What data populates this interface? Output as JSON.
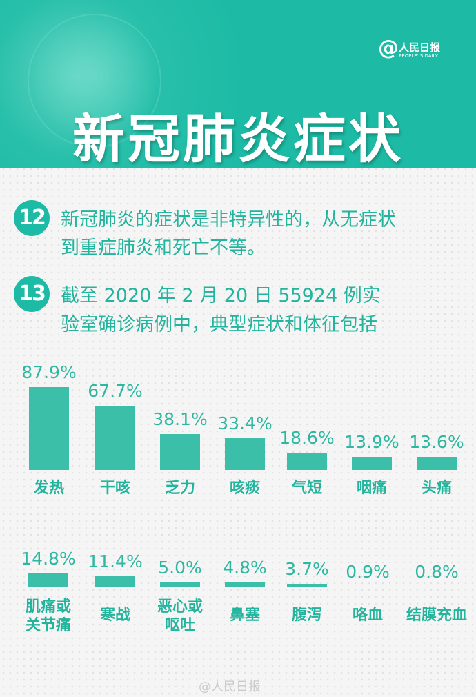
{
  "header": {
    "title": "新冠肺炎症状",
    "logo_cn": "人民日报",
    "logo_en": "PEOPLE' S DAILY",
    "background_color": "#1dbba5"
  },
  "items": [
    {
      "number": "12",
      "lines": [
        "新冠肺炎的症状是非特异性的，从无症状",
        "到重症肺炎和死亡不等。"
      ]
    },
    {
      "number": "13",
      "lines": [
        "截至 2020 年 2 月 20 日 55924 例实",
        "验室确诊病例中，典型症状和体征包括"
      ]
    }
  ],
  "chart_data": [
    {
      "type": "bar",
      "categories": [
        "发热",
        "干咳",
        "乏力",
        "咳痰",
        "气短",
        "咽痛",
        "头痛"
      ],
      "values": [
        87.9,
        67.7,
        38.1,
        33.4,
        18.6,
        13.9,
        13.6
      ],
      "value_labels": [
        "87.9%",
        "67.7%",
        "38.1%",
        "33.4%",
        "18.6%",
        "13.9%",
        "13.6%"
      ],
      "unit": "%",
      "bar_color": "#3bbfa9",
      "grid": false
    },
    {
      "type": "bar",
      "categories": [
        "肌痛或\n关节痛",
        "寒战",
        "恶心或\n呕吐",
        "鼻塞",
        "腹泻",
        "咯血",
        "结膜充血"
      ],
      "values": [
        14.8,
        11.4,
        5.0,
        4.8,
        3.7,
        0.9,
        0.8
      ],
      "value_labels": [
        "14.8%",
        "11.4%",
        "5.0%",
        "4.8%",
        "3.7%",
        "0.9%",
        "0.8%"
      ],
      "unit": "%",
      "bar_color": "#3bbfa9",
      "grid": false
    }
  ],
  "watermark": "@人民日报"
}
